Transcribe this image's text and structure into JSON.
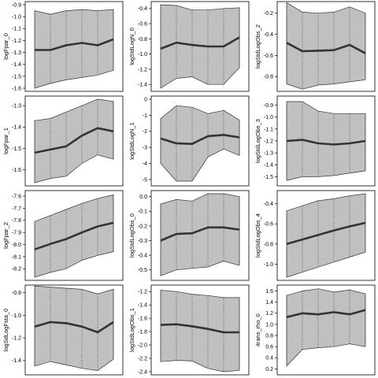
{
  "chart_data": [
    {
      "type": "line",
      "ylabel": "logFpar_0",
      "ylim": [
        -1.6,
        -0.9
      ],
      "yticks": [
        "-1.6",
        "-1.5",
        "-1.4",
        "-1.3",
        "-1.2",
        "-1.1",
        "-1.0",
        "-0.9"
      ],
      "ytick_values": [
        -1.6,
        -1.5,
        -1.4,
        -1.3,
        -1.2,
        -1.1,
        -1.0,
        -0.9
      ],
      "x": [
        1,
        2,
        3,
        4,
        5,
        6
      ],
      "lower": [
        -1.6,
        -1.56,
        -1.53,
        -1.51,
        -1.49,
        -1.45
      ],
      "upper": [
        -0.95,
        -0.98,
        -0.95,
        -0.94,
        -0.95,
        -0.94
      ],
      "mean": [
        -1.28,
        -1.28,
        -1.24,
        -1.22,
        -1.24,
        -1.19
      ]
    },
    {
      "type": "line",
      "ylabel": "logStdLogN_0",
      "ylim": [
        -1.45,
        -0.35
      ],
      "yticks": [
        "-1.4",
        "-1.2",
        "-1.0",
        "-0.8",
        "-0.6",
        "-0.4"
      ],
      "ytick_values": [
        -1.4,
        -1.2,
        -1.0,
        -0.8,
        -0.6,
        -0.4
      ],
      "x": [
        1,
        2,
        3,
        4,
        5,
        6
      ],
      "lower": [
        -1.45,
        -1.32,
        -1.3,
        -1.4,
        -1.4,
        -1.18
      ],
      "upper": [
        -0.35,
        -0.36,
        -0.42,
        -0.42,
        -0.4,
        -0.39
      ],
      "mean": [
        -0.93,
        -0.85,
        -0.88,
        -0.9,
        -0.9,
        -0.78
      ]
    },
    {
      "type": "line",
      "ylabel": "logStdLogObs_2",
      "ylim": [
        -0.91,
        -0.12
      ],
      "yticks": [
        "-0.8",
        "-0.6",
        "-0.4",
        "-0.2"
      ],
      "ytick_values": [
        -0.8,
        -0.6,
        -0.4,
        -0.2
      ],
      "x": [
        1,
        2,
        3,
        4,
        5,
        6
      ],
      "lower": [
        -0.87,
        -0.92,
        -0.88,
        -0.87,
        -0.85,
        -0.83
      ],
      "upper": [
        -0.1,
        -0.19,
        -0.2,
        -0.19,
        -0.14,
        -0.2
      ],
      "mean": [
        -0.48,
        -0.56,
        -0.555,
        -0.55,
        -0.5,
        -0.58
      ]
    },
    {
      "type": "line",
      "ylabel": "logFpar_1",
      "ylim": [
        -1.66,
        -1.27
      ],
      "yticks": [
        "-1.6",
        "-1.5",
        "-1.4",
        "-1.3"
      ],
      "ytick_values": [
        -1.6,
        -1.5,
        -1.4,
        -1.3
      ],
      "x": [
        1,
        2,
        3,
        4,
        5,
        6
      ],
      "lower": [
        -1.66,
        -1.64,
        -1.63,
        -1.57,
        -1.53,
        -1.55
      ],
      "upper": [
        -1.37,
        -1.36,
        -1.33,
        -1.3,
        -1.27,
        -1.28
      ],
      "mean": [
        -1.52,
        -1.505,
        -1.49,
        -1.44,
        -1.405,
        -1.42
      ]
    },
    {
      "type": "line",
      "ylabel": "logStdLogN_1",
      "ylim": [
        -5.2,
        0
      ],
      "yticks": [
        "-5",
        "-4",
        "-3",
        "-2",
        "-1",
        "0"
      ],
      "ytick_values": [
        -5,
        -4,
        -3,
        -2,
        -1,
        0
      ],
      "x": [
        1,
        2,
        3,
        4,
        5,
        6
      ],
      "lower": [
        -4.0,
        -5.1,
        -5.1,
        -3.6,
        -3.1,
        -3.5
      ],
      "upper": [
        -1.2,
        -0.4,
        -0.5,
        -0.9,
        -0.7,
        -1.3
      ],
      "mean": [
        -2.45,
        -2.75,
        -2.78,
        -2.3,
        -2.22,
        -2.38
      ]
    },
    {
      "type": "line",
      "ylabel": "logStdLogObs_3",
      "ylim": [
        -1.55,
        -0.85
      ],
      "yticks": [
        "-1.5",
        "-1.4",
        "-1.3",
        "-1.2",
        "-1.1",
        "-1.0",
        "-0.9"
      ],
      "ytick_values": [
        -1.5,
        -1.4,
        -1.3,
        -1.2,
        -1.1,
        -1.0,
        -0.9
      ],
      "x": [
        1,
        2,
        3,
        4,
        5,
        6
      ],
      "lower": [
        -1.53,
        -1.5,
        -1.5,
        -1.49,
        -1.47,
        -1.45
      ],
      "upper": [
        -0.87,
        -0.87,
        -0.95,
        -0.97,
        -0.97,
        -0.97
      ],
      "mean": [
        -1.2,
        -1.19,
        -1.22,
        -1.23,
        -1.22,
        -1.2
      ]
    },
    {
      "type": "line",
      "ylabel": "logFpar_2",
      "ylim": [
        -8.27,
        -7.58
      ],
      "yticks": [
        "-8.2",
        "-8.1",
        "-8.0",
        "-7.9",
        "-7.8",
        "-7.7",
        "-7.6"
      ],
      "ytick_values": [
        -8.2,
        -8.1,
        -8.0,
        -7.9,
        -7.8,
        -7.7,
        -7.6
      ],
      "x": [
        1,
        2,
        3,
        4,
        5,
        6
      ],
      "lower": [
        -8.27,
        -8.23,
        -8.2,
        -8.13,
        -8.09,
        -8.06
      ],
      "upper": [
        -7.81,
        -7.76,
        -7.71,
        -7.66,
        -7.62,
        -7.59
      ],
      "mean": [
        -8.04,
        -7.995,
        -7.955,
        -7.9,
        -7.85,
        -7.82
      ]
    },
    {
      "type": "line",
      "ylabel": "logStdLogObs_0",
      "ylim": [
        -0.55,
        0.02
      ],
      "yticks": [
        "-0.5",
        "-0.4",
        "-0.3",
        "-0.2",
        "-0.1",
        "0.0"
      ],
      "ytick_values": [
        -0.5,
        -0.4,
        -0.3,
        -0.2,
        -0.1,
        0.0
      ],
      "x": [
        1,
        2,
        3,
        4,
        5,
        6
      ],
      "lower": [
        -0.54,
        -0.5,
        -0.49,
        -0.48,
        -0.44,
        -0.47
      ],
      "upper": [
        -0.05,
        -0.02,
        -0.03,
        0.02,
        0.02,
        0.0
      ],
      "mean": [
        -0.3,
        -0.255,
        -0.25,
        -0.21,
        -0.21,
        -0.225
      ]
    },
    {
      "type": "line",
      "ylabel": "logStdLogObs_4",
      "ylim": [
        -1.13,
        -0.3
      ],
      "yticks": [
        "-1.0",
        "-0.8",
        "-0.6",
        "-0.4"
      ],
      "ytick_values": [
        -1.0,
        -0.8,
        -0.6,
        -0.4
      ],
      "x": [
        1,
        2,
        3,
        4,
        5,
        6
      ],
      "lower": [
        -1.13,
        -1.08,
        -1.03,
        -0.98,
        -0.93,
        -0.88
      ],
      "upper": [
        -0.47,
        -0.42,
        -0.37,
        -0.35,
        -0.32,
        -0.3
      ],
      "mean": [
        -0.8,
        -0.755,
        -0.71,
        -0.665,
        -0.625,
        -0.59
      ]
    },
    {
      "type": "line",
      "ylabel": "logSdLogFsta_0",
      "ylim": [
        -1.5,
        -0.76
      ],
      "yticks": [
        "-1.4",
        "-1.2",
        "-1.0",
        "-0.8"
      ],
      "ytick_values": [
        -1.4,
        -1.2,
        -1.0,
        -0.8
      ],
      "x": [
        1,
        2,
        3,
        4,
        5,
        6
      ],
      "lower": [
        -1.45,
        -1.41,
        -1.44,
        -1.47,
        -1.49,
        -1.39
      ],
      "upper": [
        -0.74,
        -0.75,
        -0.76,
        -0.77,
        -0.81,
        -0.77
      ],
      "mean": [
        -1.1,
        -1.06,
        -1.07,
        -1.1,
        -1.15,
        -1.06
      ]
    },
    {
      "type": "line",
      "ylabel": "logStdLogObs_1",
      "ylim": [
        -2.4,
        -1.15
      ],
      "yticks": [
        "-2.4",
        "-2.2",
        "-2.0",
        "-1.8",
        "-1.6",
        "-1.4",
        "-1.2"
      ],
      "ytick_values": [
        -2.4,
        -2.2,
        -2.0,
        -1.8,
        -1.6,
        -1.4,
        -1.2
      ],
      "x": [
        1,
        2,
        3,
        4,
        5,
        6
      ],
      "lower": [
        -2.25,
        -2.23,
        -2.24,
        -2.35,
        -2.4,
        -2.38
      ],
      "upper": [
        -1.18,
        -1.2,
        -1.24,
        -1.26,
        -1.29,
        -1.29
      ],
      "mean": [
        -1.7,
        -1.69,
        -1.72,
        -1.76,
        -1.81,
        -1.81
      ]
    },
    {
      "type": "line",
      "ylabel": "itrans_rho_0",
      "ylim": [
        0.15,
        1.65
      ],
      "yticks": [
        "0.2",
        "0.4",
        "0.6",
        "0.8",
        "1.0",
        "1.2",
        "1.4",
        "1.6"
      ],
      "ytick_values": [
        0.2,
        0.4,
        0.6,
        0.8,
        1.0,
        1.2,
        1.4,
        1.6
      ],
      "x": [
        1,
        2,
        3,
        4,
        5,
        6
      ],
      "lower": [
        0.25,
        0.55,
        0.58,
        0.6,
        0.65,
        0.6
      ],
      "upper": [
        1.52,
        1.6,
        1.64,
        1.58,
        1.62,
        1.55
      ],
      "mean": [
        1.13,
        1.2,
        1.18,
        1.22,
        1.18,
        1.26
      ]
    }
  ]
}
